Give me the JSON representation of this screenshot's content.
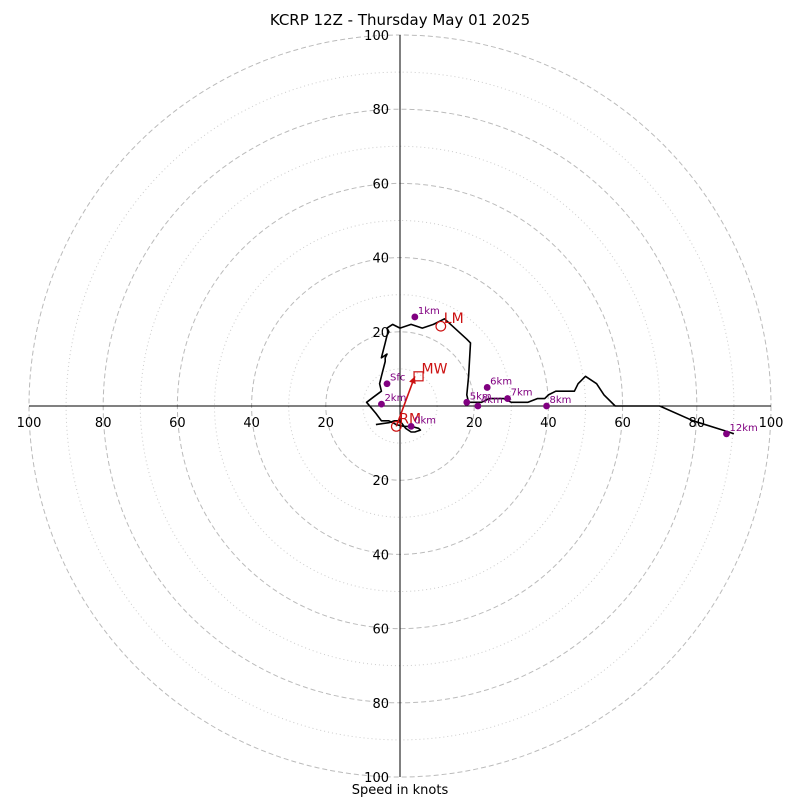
{
  "chart_data": {
    "type": "scatter",
    "title": "KCRP 12Z - Thursday May 01 2025",
    "xlabel": "Speed in knots",
    "ylabel": "",
    "xlim": [
      -100,
      100
    ],
    "ylim": [
      -100,
      100
    ],
    "rings": {
      "major": [
        20,
        40,
        60,
        80,
        100
      ],
      "minor": [
        10,
        30,
        50,
        70,
        90
      ]
    },
    "axis_ticks": [
      20,
      40,
      60,
      80,
      100
    ],
    "grid": true,
    "hodograph": {
      "u": [
        -6.5,
        -3,
        -1.5,
        0,
        1.5,
        3,
        4,
        5.5,
        5,
        3,
        1,
        -1,
        -3,
        -5,
        -6.5,
        -9,
        -7,
        -5,
        -5.5,
        -5,
        -4,
        -4,
        -3.5,
        -5,
        -4,
        -3.5,
        -3,
        -3.5,
        -2,
        0,
        3,
        6,
        9,
        12,
        18,
        19,
        18.5,
        18,
        18.5,
        20,
        22,
        24,
        26,
        28,
        30,
        32,
        34.5,
        37,
        39,
        40,
        42,
        47,
        48,
        50,
        53,
        55,
        58,
        63,
        70,
        79,
        87,
        90
      ],
      "v": [
        -5,
        -4.5,
        -4,
        -4,
        -6,
        -7,
        -7,
        -6.5,
        -6,
        -5.5,
        -5.5,
        -5,
        -4,
        -4,
        -2,
        1,
        2.5,
        4,
        6,
        8,
        12,
        13,
        14,
        13,
        17,
        19,
        20,
        21,
        22,
        21,
        22,
        21,
        22,
        23.5,
        18,
        17,
        8,
        3,
        1,
        1,
        1,
        2,
        2,
        2,
        1,
        1,
        1,
        2,
        2,
        3,
        4,
        4,
        6,
        8,
        6,
        3,
        0,
        0,
        0,
        -4,
        -6.5,
        -7.5
      ]
    },
    "height_markers": [
      {
        "label": "0km",
        "u": 3,
        "v": -5.5
      },
      {
        "label": "Sfc",
        "u": -3.5,
        "v": 6
      },
      {
        "label": "1km",
        "u": 4,
        "v": 24
      },
      {
        "label": "2km",
        "u": -5,
        "v": 0.5
      },
      {
        "label": "4km",
        "u": 21,
        "v": 0
      },
      {
        "label": "5km",
        "u": 18,
        "v": 1
      },
      {
        "label": "6km",
        "u": 23.5,
        "v": 5
      },
      {
        "label": "7km",
        "u": 29,
        "v": 2
      },
      {
        "label": "8km",
        "u": 39.5,
        "v": 0
      },
      {
        "label": "12km",
        "u": 88,
        "v": -7.5
      }
    ],
    "motion_markers": [
      {
        "label": "LM",
        "u": 11,
        "v": 21.5,
        "shape": "circle"
      },
      {
        "label": "MW",
        "u": 5,
        "v": 8,
        "shape": "square"
      },
      {
        "label": "RM",
        "u": -1,
        "v": -5.5,
        "shape": "circle"
      }
    ],
    "shear_arrow": {
      "from": [
        -1,
        -5.5
      ],
      "to": [
        4,
        8
      ]
    },
    "colors": {
      "hodograph": "#000000",
      "markers": "#800080",
      "motion": "#cc1111",
      "grid": "#bbbbbb"
    }
  }
}
